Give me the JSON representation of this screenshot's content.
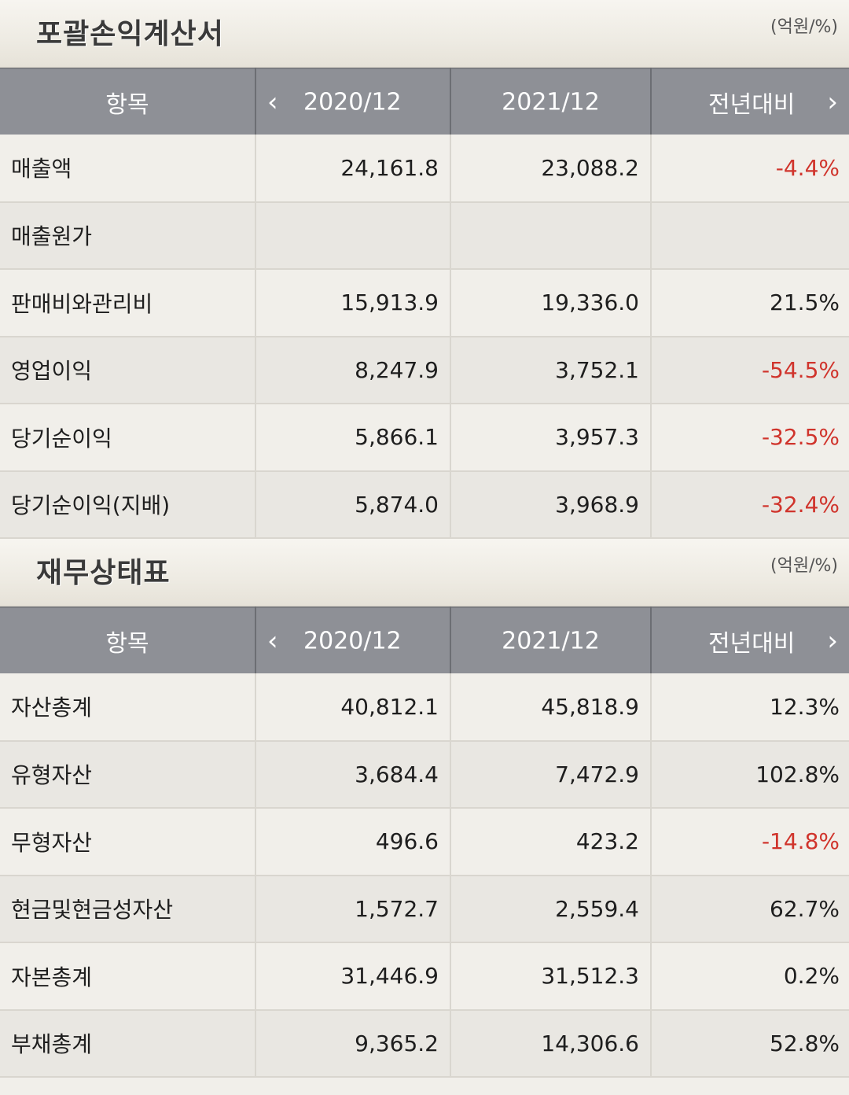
{
  "income": {
    "title": "포괄손익계산서",
    "unit": "(억원/%)",
    "headers": {
      "item": "항목",
      "year1": "2020/12",
      "year2": "2021/12",
      "compare": "전년대비"
    },
    "rows": [
      {
        "label": "매출액",
        "y1": "24,161.8",
        "y2": "23,088.2",
        "change": "-4.4%",
        "negative": true
      },
      {
        "label": "매출원가",
        "y1": "",
        "y2": "",
        "change": "",
        "negative": false
      },
      {
        "label": "판매비와관리비",
        "y1": "15,913.9",
        "y2": "19,336.0",
        "change": "21.5%",
        "negative": false
      },
      {
        "label": "영업이익",
        "y1": "8,247.9",
        "y2": "3,752.1",
        "change": "-54.5%",
        "negative": true
      },
      {
        "label": "당기순이익",
        "y1": "5,866.1",
        "y2": "3,957.3",
        "change": "-32.5%",
        "negative": true
      },
      {
        "label": "당기순이익(지배)",
        "y1": "5,874.0",
        "y2": "3,968.9",
        "change": "-32.4%",
        "negative": true
      }
    ]
  },
  "balance": {
    "title": "재무상태표",
    "unit": "(억원/%)",
    "headers": {
      "item": "항목",
      "year1": "2020/12",
      "year2": "2021/12",
      "compare": "전년대비"
    },
    "rows": [
      {
        "label": "자산총계",
        "y1": "40,812.1",
        "y2": "45,818.9",
        "change": "12.3%",
        "negative": false
      },
      {
        "label": "유형자산",
        "y1": "3,684.4",
        "y2": "7,472.9",
        "change": "102.8%",
        "negative": false
      },
      {
        "label": "무형자산",
        "y1": "496.6",
        "y2": "423.2",
        "change": "-14.8%",
        "negative": true
      },
      {
        "label": "현금및현금성자산",
        "y1": "1,572.7",
        "y2": "2,559.4",
        "change": "62.7%",
        "negative": false
      },
      {
        "label": "자본총계",
        "y1": "31,446.9",
        "y2": "31,512.3",
        "change": "0.2%",
        "negative": false
      },
      {
        "label": "부채총계",
        "y1": "9,365.2",
        "y2": "14,306.6",
        "change": "52.8%",
        "negative": false
      }
    ]
  },
  "icons": {
    "prev": "chevron-left-icon",
    "next": "chevron-right-icon"
  },
  "colors": {
    "negative": "#d0342c",
    "header_bg": "#8e9096"
  }
}
